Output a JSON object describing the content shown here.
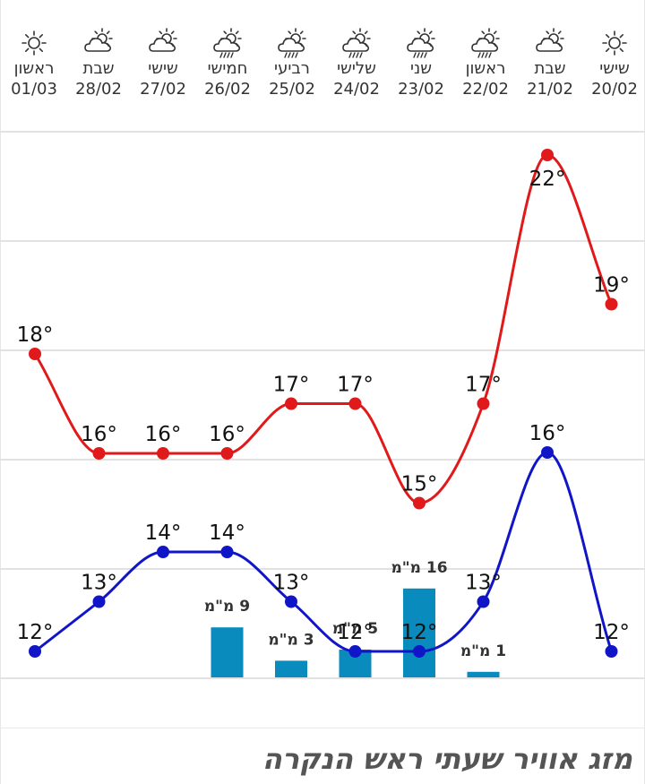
{
  "days": [
    {
      "name": "ראשון",
      "date": "01/03",
      "icon": "sun-icon"
    },
    {
      "name": "שבת",
      "date": "28/02",
      "icon": "partly-cloudy-icon"
    },
    {
      "name": "שישי",
      "date": "27/02",
      "icon": "partly-cloudy-icon"
    },
    {
      "name": "חמישי",
      "date": "26/02",
      "icon": "rain-icon"
    },
    {
      "name": "רביעי",
      "date": "25/02",
      "icon": "rain-icon"
    },
    {
      "name": "שלישי",
      "date": "24/02",
      "icon": "rain-icon"
    },
    {
      "name": "שני",
      "date": "23/02",
      "icon": "rain-icon"
    },
    {
      "name": "ראשון",
      "date": "22/02",
      "icon": "rain-icon"
    },
    {
      "name": "שבת",
      "date": "21/02",
      "icon": "partly-cloudy-icon"
    },
    {
      "name": "שישי",
      "date": "20/02",
      "icon": "sun-icon"
    }
  ],
  "chart_data": {
    "type": "line",
    "categories": [
      "01/03",
      "28/02",
      "27/02",
      "26/02",
      "25/02",
      "24/02",
      "23/02",
      "22/02",
      "21/02",
      "20/02"
    ],
    "series": [
      {
        "values": [
          18,
          16,
          16,
          16,
          17,
          17,
          15,
          17,
          22,
          19
        ],
        "color": "#e0191b"
      },
      {
        "values": [
          12,
          13,
          14,
          14,
          13,
          12,
          12,
          13,
          16,
          12
        ],
        "color": "#1016c8"
      }
    ],
    "rain": [
      null,
      null,
      null,
      9,
      3,
      5,
      16,
      1,
      null,
      null
    ],
    "rain_label_suffix": " מ\"מ",
    "temp_suffix": "°",
    "rain_color": "#0a8bbd",
    "grid": true
  },
  "footer": {
    "title": "מזג אוויר שעתי ראש הנקרה"
  }
}
